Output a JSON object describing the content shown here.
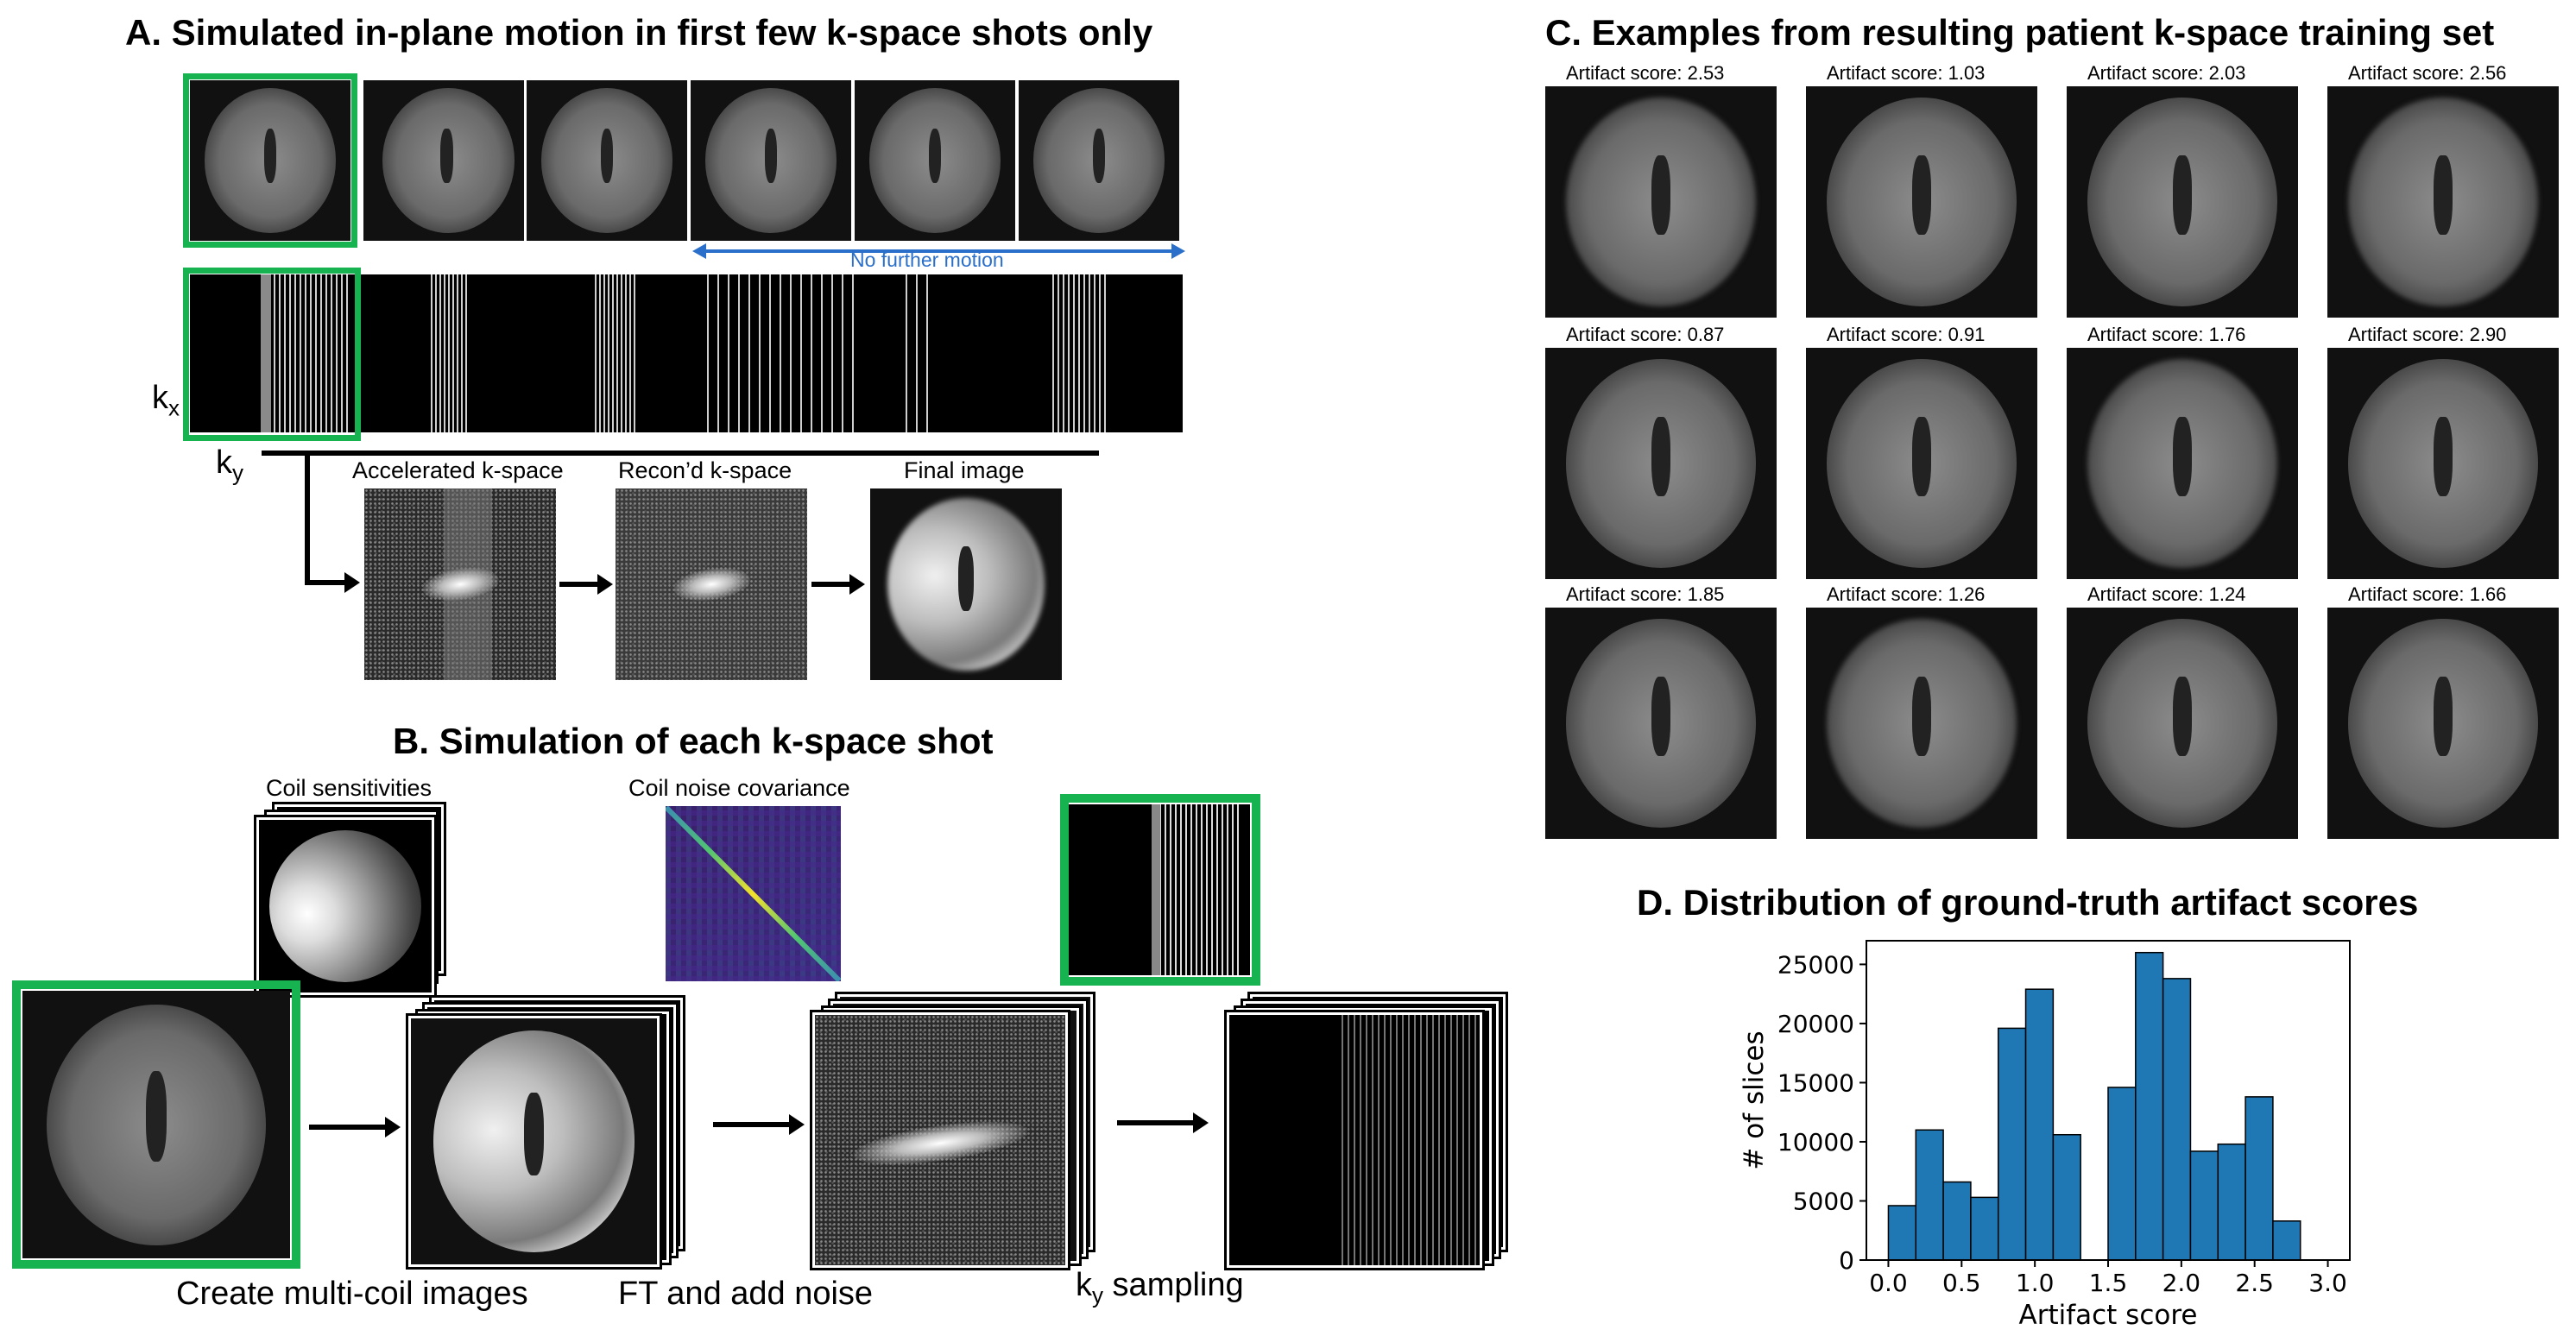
{
  "panelA": {
    "title": "A. Simulated in-plane motion in first few k-space shots only",
    "no_further_motion": "No further motion",
    "kx_label": "k",
    "kx_sub": "x",
    "ky_label": "k",
    "ky_sub": "y",
    "accel_label": "Accelerated k-space",
    "recon_label": "Recon’d k-space",
    "final_label": "Final image"
  },
  "panelB": {
    "title": "B. Simulation of each k-space shot",
    "coil_sens_label": "Coil sensitivities",
    "coil_noise_label": "Coil noise covariance",
    "step1": "Create multi-coil images",
    "step2": "FT and add noise",
    "step3_k": "k",
    "step3_sub": "y",
    "step3_rest": " sampling"
  },
  "panelC": {
    "title": "C. Examples from resulting patient k-space training set",
    "examples": [
      "Artifact score: 2.53",
      "Artifact score: 1.03",
      "Artifact score: 2.03",
      "Artifact score: 2.56",
      "Artifact score: 0.87",
      "Artifact score: 0.91",
      "Artifact score: 1.76",
      "Artifact score: 2.90",
      "Artifact score: 1.85",
      "Artifact score: 1.26",
      "Artifact score: 1.24",
      "Artifact score: 1.66"
    ]
  },
  "panelD": {
    "title": "D. Distribution of ground-truth artifact scores"
  },
  "colors": {
    "accent_green": "#17b350",
    "arrow_blue": "#2a6fc9",
    "bar_blue": "#1f77b4"
  },
  "chart_data": {
    "type": "bar",
    "title": "",
    "xlabel": "Artifact score",
    "ylabel": "# of slices",
    "xlim": [
      -0.15,
      3.15
    ],
    "ylim": [
      0,
      27000
    ],
    "xticks": [
      "0.0",
      "0.5",
      "1.0",
      "1.5",
      "2.0",
      "2.5",
      "3.0"
    ],
    "yticks": [
      "0",
      "5000",
      "10000",
      "15000",
      "20000",
      "25000"
    ],
    "bin_width": 0.1875,
    "bin_starts": [
      0.0,
      0.1875,
      0.375,
      0.5625,
      0.75,
      0.9375,
      1.125,
      1.3125,
      1.5,
      1.6875,
      1.875,
      2.0625,
      2.25,
      2.4375,
      2.625,
      2.8125
    ],
    "values": [
      4600,
      11000,
      6600,
      5300,
      19600,
      22900,
      10600,
      0,
      14600,
      26000,
      23800,
      9200,
      9800,
      13800,
      3300,
      0
    ]
  }
}
